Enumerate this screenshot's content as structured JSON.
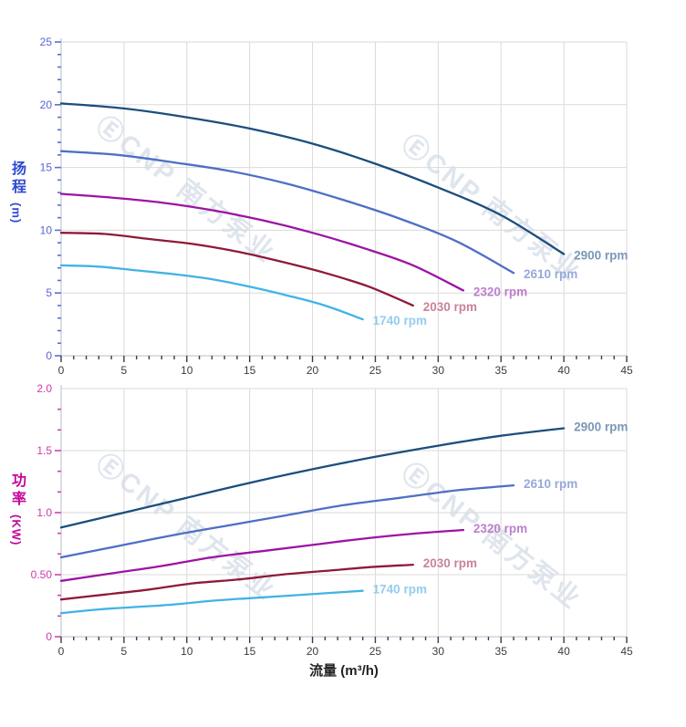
{
  "watermark": {
    "text": "ⒺCNP 南方泵业",
    "color": "#acbbd0"
  },
  "xlabel": "流量 (m³/h)",
  "chart_data": [
    {
      "type": "line",
      "title": "",
      "ylabel": "扬程",
      "ylabel_unit": "(m)",
      "xlabel": "",
      "xlim": [
        0,
        45
      ],
      "ylim": [
        0,
        25
      ],
      "grid": true,
      "legend_position": "end-of-line labels",
      "x_ticks": {
        "major": [
          0,
          5,
          10,
          15,
          20,
          25,
          30,
          35,
          40,
          45
        ],
        "labels": [
          "0",
          "5",
          "10",
          "15",
          "20",
          "25",
          "30",
          "35",
          "40",
          "45"
        ],
        "minor_step": 1
      },
      "y_ticks": {
        "major": [
          0,
          5,
          10,
          15,
          20,
          25
        ],
        "labels": [
          "0",
          "5",
          "10",
          "15",
          "20",
          "25"
        ],
        "minor_step": 1
      },
      "axis_colors": {
        "tick": "#5a6ed8",
        "tick_label": "#5565d6",
        "title": "#2e49d1",
        "x_tick": "#3c3c3c",
        "x_tick_label": "#3c3c3c"
      },
      "series": [
        {
          "name": "2900 rpm",
          "color": "#1c4e7d",
          "label_color": "#7b97b9",
          "x": [
            0,
            5,
            10,
            15,
            20,
            25,
            30,
            35,
            40
          ],
          "y": [
            20.1,
            19.7,
            19.0,
            18.1,
            16.9,
            15.3,
            13.4,
            11.2,
            8.1
          ]
        },
        {
          "name": "2610 rpm",
          "color": "#4f6fc5",
          "label_color": "#97a9da",
          "x": [
            0,
            4.5,
            9,
            13.5,
            18,
            22.5,
            27,
            31.5,
            36
          ],
          "y": [
            16.3,
            16.0,
            15.4,
            14.7,
            13.7,
            12.4,
            10.9,
            9.1,
            6.6
          ]
        },
        {
          "name": "2320 rpm",
          "color": "#9c14a4",
          "label_color": "#bd7fcb",
          "x": [
            0,
            4,
            8,
            12,
            16,
            20,
            24,
            28,
            32
          ],
          "y": [
            12.9,
            12.6,
            12.2,
            11.6,
            10.8,
            9.8,
            8.6,
            7.2,
            5.2
          ]
        },
        {
          "name": "2030 rpm",
          "color": "#8e1a38",
          "label_color": "#c8839a",
          "x": [
            0,
            3.5,
            7,
            10.5,
            14,
            17.5,
            21,
            24.5,
            28
          ],
          "y": [
            9.8,
            9.7,
            9.3,
            8.9,
            8.3,
            7.5,
            6.6,
            5.5,
            4.0
          ]
        },
        {
          "name": "1740 rpm",
          "color": "#41b3e6",
          "label_color": "#93cdee",
          "x": [
            0,
            3,
            6,
            9,
            12,
            15,
            18,
            21,
            24
          ],
          "y": [
            7.2,
            7.1,
            6.8,
            6.5,
            6.1,
            5.5,
            4.8,
            4.0,
            2.9
          ]
        }
      ]
    },
    {
      "type": "line",
      "title": "",
      "ylabel": "功率",
      "ylabel_unit": "(KW)",
      "xlabel": "流量 (m³/h)",
      "xlim": [
        0,
        45
      ],
      "ylim": [
        0,
        2.0
      ],
      "grid": true,
      "legend_position": "end-of-line labels",
      "x_ticks": {
        "major": [
          0,
          5,
          10,
          15,
          20,
          25,
          30,
          35,
          40,
          45
        ],
        "labels": [
          "0",
          "5",
          "10",
          "15",
          "20",
          "25",
          "30",
          "35",
          "40",
          "45"
        ],
        "minor_step": 1
      },
      "y_ticks": {
        "major": [
          0,
          0.5,
          1.0,
          1.5,
          2.0
        ],
        "labels": [
          "0",
          "0.50",
          "1.0",
          "1.5",
          "2.0"
        ],
        "minor_step": 0.16667
      },
      "axis_colors": {
        "tick": "#d63fb0",
        "tick_label": "#cc3aa8",
        "title": "#c2079c",
        "x_tick": "#3c3c3c",
        "x_tick_label": "#3c3c3c"
      },
      "series": [
        {
          "name": "2900 rpm",
          "color": "#1c4e7d",
          "label_color": "#7b97b9",
          "x": [
            0,
            5,
            10,
            15,
            20,
            25,
            30,
            35,
            40
          ],
          "y": [
            0.88,
            1.0,
            1.12,
            1.24,
            1.35,
            1.45,
            1.54,
            1.62,
            1.68
          ]
        },
        {
          "name": "2610 rpm",
          "color": "#4f6fc5",
          "label_color": "#97a9da",
          "x": [
            0,
            4.5,
            9,
            13.5,
            18,
            22.5,
            27,
            31.5,
            36
          ],
          "y": [
            0.64,
            0.73,
            0.82,
            0.9,
            0.98,
            1.06,
            1.12,
            1.18,
            1.22
          ]
        },
        {
          "name": "2320 rpm",
          "color": "#9c14a4",
          "label_color": "#bd7fcb",
          "x": [
            0,
            4,
            8,
            12,
            16,
            20,
            24,
            28,
            32
          ],
          "y": [
            0.45,
            0.51,
            0.57,
            0.64,
            0.69,
            0.74,
            0.79,
            0.83,
            0.86
          ]
        },
        {
          "name": "2030 rpm",
          "color": "#8e1a38",
          "label_color": "#c8839a",
          "x": [
            0,
            3.5,
            7,
            10.5,
            14,
            17.5,
            21,
            24.5,
            28
          ],
          "y": [
            0.3,
            0.34,
            0.38,
            0.43,
            0.46,
            0.5,
            0.53,
            0.56,
            0.58
          ]
        },
        {
          "name": "1740 rpm",
          "color": "#41b3e6",
          "label_color": "#93cdee",
          "x": [
            0,
            3,
            6,
            9,
            12,
            15,
            18,
            21,
            24
          ],
          "y": [
            0.19,
            0.22,
            0.24,
            0.26,
            0.29,
            0.31,
            0.33,
            0.35,
            0.37
          ]
        }
      ]
    }
  ]
}
